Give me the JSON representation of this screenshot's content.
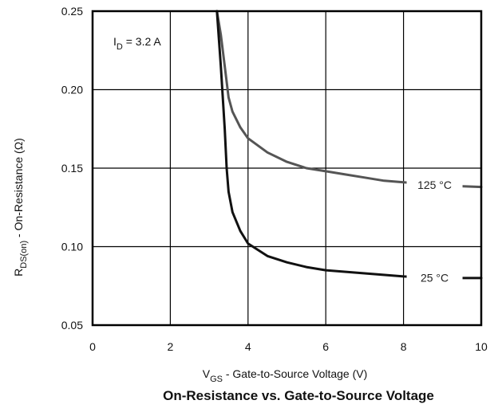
{
  "chart_data": {
    "type": "line",
    "title": "On-Resistance vs. Gate-to-Source Voltage",
    "xlabel": {
      "main": "V",
      "sub": "GS",
      "rest": " - Gate-to-Source Voltage (V)"
    },
    "ylabel": {
      "main": "R",
      "sub": "DS(on)",
      "rest": " - On-Resistance (Ω)"
    },
    "annotation": {
      "main": "I",
      "sub": "D",
      "rest": " = 3.2 A"
    },
    "xlim": [
      0,
      10
    ],
    "ylim": [
      0.05,
      0.25
    ],
    "xticks": [
      0,
      2,
      4,
      6,
      8,
      10
    ],
    "xtick_labels": [
      "0",
      "2",
      "4",
      "6",
      "8",
      "10"
    ],
    "yticks": [
      0.05,
      0.1,
      0.15,
      0.2,
      0.25
    ],
    "ytick_labels": [
      "0.05",
      "0.10",
      "0.15",
      "0.20",
      "0.25"
    ],
    "grid": true,
    "series": [
      {
        "name": "125 °C",
        "color": "#555555",
        "x": [
          3.2,
          3.3,
          3.4,
          3.5,
          3.6,
          3.8,
          4.0,
          4.5,
          5.0,
          5.5,
          6.0,
          6.5,
          7.0,
          7.5,
          8.0,
          9.0,
          10.0
        ],
        "y": [
          0.25,
          0.235,
          0.215,
          0.195,
          0.186,
          0.176,
          0.169,
          0.16,
          0.154,
          0.15,
          0.148,
          0.146,
          0.144,
          0.142,
          0.141,
          0.139,
          0.138
        ]
      },
      {
        "name": "25 °C",
        "color": "#111111",
        "x": [
          3.2,
          3.3,
          3.4,
          3.45,
          3.5,
          3.6,
          3.8,
          4.0,
          4.5,
          5.0,
          5.5,
          6.0,
          7.0,
          8.0,
          9.0,
          10.0
        ],
        "y": [
          0.25,
          0.215,
          0.175,
          0.15,
          0.135,
          0.122,
          0.11,
          0.102,
          0.094,
          0.09,
          0.087,
          0.085,
          0.083,
          0.081,
          0.08,
          0.08
        ]
      }
    ]
  }
}
